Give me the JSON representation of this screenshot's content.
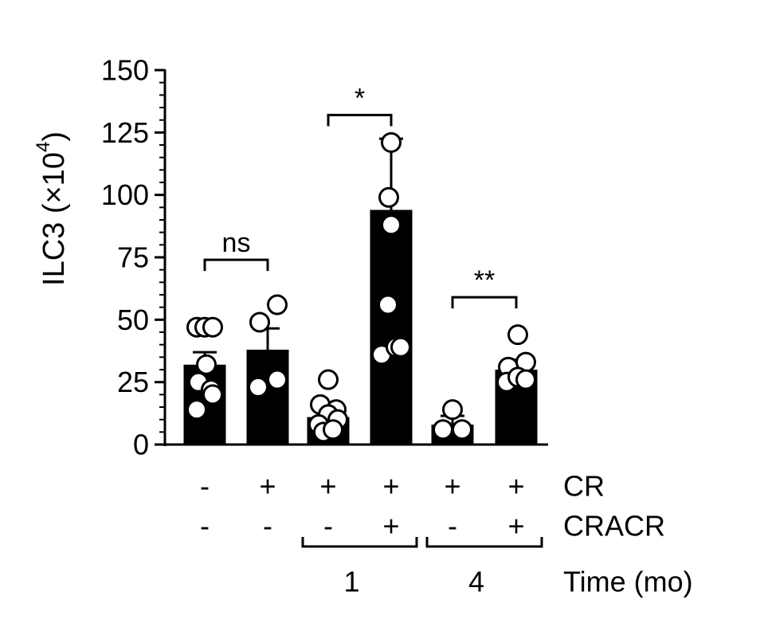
{
  "chart_data": {
    "type": "bar",
    "title": "",
    "ylabel": "ILC3 (×10",
    "ylabel_sup": "4",
    "ylabel_close": ")",
    "ylim": [
      0,
      150
    ],
    "yticks": [
      0,
      25,
      50,
      75,
      100,
      125,
      150
    ],
    "ytick_labels": [
      "0",
      "25",
      "50",
      "75",
      "100",
      "125",
      "150"
    ],
    "y_minor_step": 5,
    "bar_color": "#000000",
    "point_color": "#ffffff",
    "groups": [
      {
        "cr": "-",
        "cracr": "-",
        "mean": 32,
        "sem": 5,
        "points": [
          [
            -0.1,
            47
          ],
          [
            0.0,
            47
          ],
          [
            0.1,
            47
          ],
          [
            0.02,
            32
          ],
          [
            -0.08,
            25
          ],
          [
            0.08,
            22
          ],
          [
            -0.1,
            14
          ],
          [
            0.1,
            20
          ]
        ]
      },
      {
        "cr": "+",
        "cracr": "-",
        "mean": 38,
        "sem": 8.5,
        "points": [
          [
            -0.1,
            49
          ],
          [
            0.12,
            56
          ],
          [
            -0.12,
            23
          ],
          [
            0.12,
            26
          ]
        ]
      },
      {
        "cr": "+",
        "cracr": "-",
        "mean": 11,
        "sem": 4,
        "points": [
          [
            0.0,
            26
          ],
          [
            -0.1,
            16
          ],
          [
            0.1,
            14
          ],
          [
            0.0,
            12
          ],
          [
            -0.12,
            8
          ],
          [
            0.12,
            10
          ],
          [
            -0.06,
            5
          ],
          [
            0.06,
            6
          ]
        ]
      },
      {
        "cr": "+",
        "cracr": "+",
        "mean": 94,
        "sem": 28.5,
        "points": [
          [
            0.0,
            121
          ],
          [
            -0.03,
            99
          ],
          [
            0.0,
            88
          ],
          [
            -0.04,
            56
          ],
          [
            -0.12,
            36
          ],
          [
            0.06,
            39
          ],
          [
            0.12,
            39
          ]
        ]
      },
      {
        "cr": "+",
        "cracr": "-",
        "mean": 8,
        "sem": 3.5,
        "points": [
          [
            0.0,
            14
          ],
          [
            -0.12,
            6
          ],
          [
            0.12,
            6
          ]
        ]
      },
      {
        "cr": "+",
        "cracr": "+",
        "mean": 30,
        "sem": 4,
        "points": [
          [
            0.02,
            44
          ],
          [
            -0.1,
            31
          ],
          [
            0.12,
            33
          ],
          [
            -0.12,
            25
          ],
          [
            0.02,
            27
          ],
          [
            0.12,
            26
          ]
        ]
      }
    ],
    "significance": [
      {
        "from": 0,
        "to": 1,
        "y": 74,
        "label": "ns"
      },
      {
        "from": 2,
        "to": 3,
        "y": 132,
        "label": "*"
      },
      {
        "from": 4,
        "to": 5,
        "y": 59,
        "label": "**"
      }
    ],
    "row_labels": {
      "cr": "CR",
      "cracr": "CRACR",
      "time": "Time (mo)"
    },
    "time_groups": [
      {
        "label": "1",
        "from": 2,
        "to": 3
      },
      {
        "label": "4",
        "from": 4,
        "to": 5
      }
    ]
  }
}
